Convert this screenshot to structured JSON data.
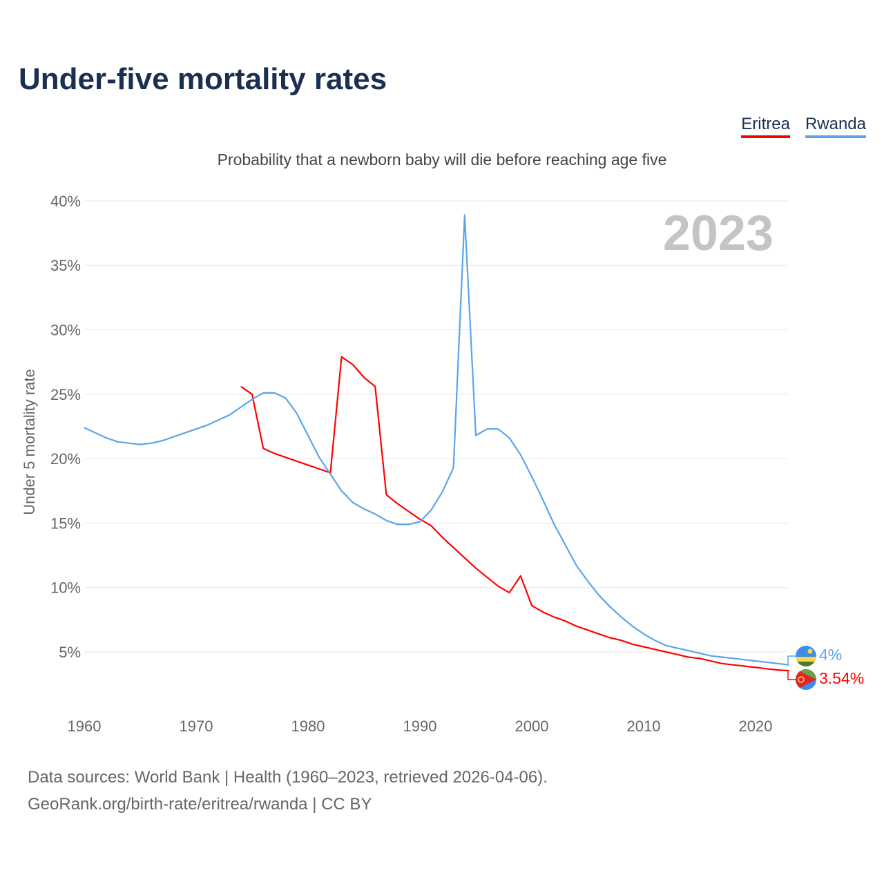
{
  "title": "Under-five mortality rates",
  "subtitle": "Probability that a newborn baby will die before reaching age five",
  "footer": {
    "line1": "Data sources: World Bank | Health (1960–2023, retrieved 2026-04-06).",
    "line2": "GeoRank.org/birth-rate/eritrea/rwanda | CC BY"
  },
  "chart_data": {
    "type": "line",
    "title": "Under-five mortality rates",
    "ylabel": "Under 5 mortality rate",
    "xlabel": "",
    "xlim": [
      1960,
      2023
    ],
    "ylim": [
      0,
      40
    ],
    "x_ticks": [
      "1960",
      "1970",
      "1980",
      "1990",
      "2000",
      "2010",
      "2020"
    ],
    "y_ticks": [
      "5%",
      "10%",
      "15%",
      "20%",
      "25%",
      "30%",
      "35%",
      "40%"
    ],
    "grid": true,
    "legend": "top-right",
    "year_watermark": "2023",
    "series": [
      {
        "name": "Eritrea",
        "color": "#ff0000",
        "start_year": 1974,
        "end_label": "3.54%",
        "flag": "eritrea-flag",
        "values": [
          25.6,
          25.0,
          20.8,
          20.4,
          20.1,
          19.8,
          19.5,
          19.2,
          18.9,
          27.9,
          27.3,
          26.3,
          25.6,
          17.2,
          16.5,
          15.9,
          15.3,
          14.8,
          13.9,
          13.1,
          12.3,
          11.5,
          10.8,
          10.1,
          9.6,
          10.9,
          8.6,
          8.1,
          7.7,
          7.4,
          7.0,
          6.7,
          6.4,
          6.1,
          5.9,
          5.6,
          5.4,
          5.2,
          5.0,
          4.8,
          4.6,
          4.5,
          4.3,
          4.1,
          4.0,
          3.9,
          3.8,
          3.7,
          3.6,
          3.54
        ]
      },
      {
        "name": "Rwanda",
        "color": "#5ba4ea",
        "start_year": 1960,
        "end_label": "4%",
        "flag": "rwanda-flag",
        "values": [
          22.4,
          22.0,
          21.6,
          21.3,
          21.2,
          21.1,
          21.2,
          21.4,
          21.7,
          22.0,
          22.3,
          22.6,
          23.0,
          23.4,
          24.0,
          24.6,
          25.1,
          25.1,
          24.7,
          23.5,
          21.8,
          20.1,
          18.8,
          17.5,
          16.6,
          16.1,
          15.7,
          15.2,
          14.9,
          14.9,
          15.1,
          16.0,
          17.4,
          19.3,
          38.9,
          21.8,
          22.3,
          22.3,
          21.6,
          20.3,
          18.6,
          16.8,
          14.9,
          13.3,
          11.7,
          10.5,
          9.4,
          8.5,
          7.7,
          7.0,
          6.4,
          5.9,
          5.5,
          5.3,
          5.1,
          4.9,
          4.7,
          4.6,
          4.5,
          4.4,
          4.3,
          4.2,
          4.1,
          4.0
        ]
      }
    ]
  }
}
